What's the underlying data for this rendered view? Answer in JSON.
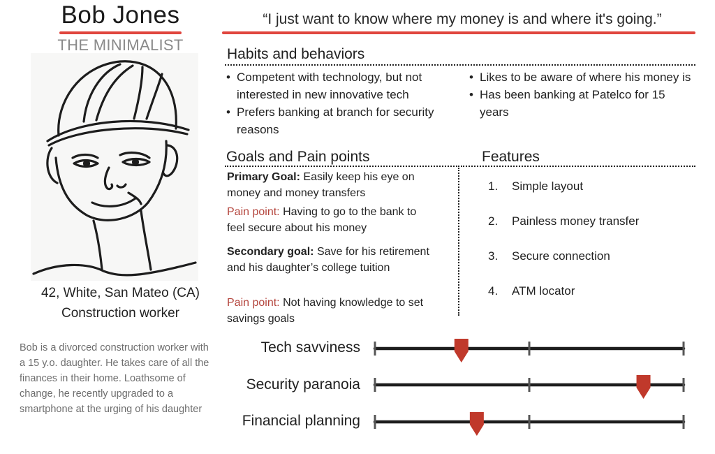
{
  "persona": {
    "name": "Bob Jones",
    "archetype": "THE MINIMALIST",
    "demographics": "42, White, San Mateo (CA)",
    "occupation": "Construction worker",
    "bio": "Bob is a divorced construction worker with a 15 y.o. daughter. He takes care of all the finances in their home. Loathsome of change, he recently upgraded to a smartphone at the urging of his daughter"
  },
  "quote": "“I just want to know where my money is and where it's going.”",
  "habits": {
    "title": "Habits and behaviors",
    "left": [
      "Competent with technology, but not interested in new innovative tech",
      "Prefers banking at branch for security reasons"
    ],
    "right": [
      "Likes to be aware of where his money is",
      "Has been banking at Patelco for 15 years"
    ]
  },
  "goals": {
    "title": "Goals and Pain points",
    "primary_label": "Primary Goal:",
    "primary_text": "Easily keep his eye on money and money transfers",
    "pain1_label": "Pain point:",
    "pain1_text": "Having to go to the bank to feel secure about his money",
    "secondary_label": "Secondary goal:",
    "secondary_text": "Save for his retirement and his daughter’s college tuition",
    "pain2_label": "Pain point:",
    "pain2_text": "Not having knowledge to set savings goals"
  },
  "features": {
    "title": "Features",
    "items": [
      {
        "num": "1.",
        "text": "Simple layout"
      },
      {
        "num": "2.",
        "text": "Painless money transfer"
      },
      {
        "num": "3.",
        "text": "Secure connection"
      },
      {
        "num": "4.",
        "text": "ATM locator"
      }
    ]
  },
  "sliders": [
    {
      "label": "Tech savviness",
      "level": 0.28
    },
    {
      "label": "Security paranoia",
      "level": 0.87
    },
    {
      "label": "Financial planning",
      "level": 0.33
    }
  ],
  "colors": {
    "accent": "#e0463e",
    "marker": "#c0392b",
    "pain_text": "#b4453d",
    "bio_text": "#6e6e6e"
  }
}
